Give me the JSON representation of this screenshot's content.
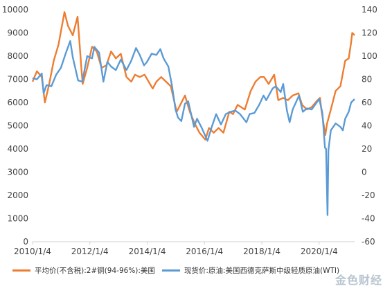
{
  "chart_data": {
    "type": "line",
    "x_start": "2010/1/4",
    "x_end": "2021/3/31",
    "xticks": [
      "2010/1/4",
      "2012/1/4",
      "2014/1/4",
      "2016/1/4",
      "2018/1/4",
      "2020/1/4"
    ],
    "y_left": {
      "min": 0,
      "max": 10000,
      "ticks": [
        "0",
        "1000",
        "2000",
        "3000",
        "4000",
        "5000",
        "6000",
        "7000",
        "8000",
        "9000",
        "10000"
      ]
    },
    "y_right": {
      "min": -60,
      "max": 140,
      "ticks": [
        "-60",
        "-40",
        "-20",
        "0",
        "20",
        "40",
        "60",
        "80",
        "100",
        "120",
        "140"
      ]
    },
    "series": [
      {
        "name": "平均价(不含税):2#铜(94-96%):美国",
        "axis": "left",
        "color": "#ed7d31",
        "points": [
          [
            "2010/1/4",
            6900
          ],
          [
            "2010/3/1",
            7350
          ],
          [
            "2010/5/1",
            7100
          ],
          [
            "2010/6/10",
            6000
          ],
          [
            "2010/8/1",
            6750
          ],
          [
            "2010/10/1",
            7800
          ],
          [
            "2010/12/1",
            8500
          ],
          [
            "2011/2/15",
            9900
          ],
          [
            "2011/4/1",
            9300
          ],
          [
            "2011/6/1",
            8900
          ],
          [
            "2011/8/1",
            9700
          ],
          [
            "2011/9/20",
            7400
          ],
          [
            "2011/10/5",
            6800
          ],
          [
            "2011/12/1",
            7500
          ],
          [
            "2012/2/1",
            8400
          ],
          [
            "2012/4/1",
            8200
          ],
          [
            "2012/6/1",
            7500
          ],
          [
            "2012/8/1",
            7600
          ],
          [
            "2012/10/1",
            8200
          ],
          [
            "2012/12/1",
            7900
          ],
          [
            "2013/2/1",
            8100
          ],
          [
            "2013/4/15",
            7100
          ],
          [
            "2013/6/15",
            6900
          ],
          [
            "2013/8/1",
            7200
          ],
          [
            "2013/10/1",
            7100
          ],
          [
            "2013/12/1",
            7200
          ],
          [
            "2014/3/15",
            6600
          ],
          [
            "2014/5/1",
            6900
          ],
          [
            "2014/7/1",
            7100
          ],
          [
            "2014/9/1",
            6900
          ],
          [
            "2014/11/1",
            6700
          ],
          [
            "2015/1/15",
            5600
          ],
          [
            "2015/3/1",
            5900
          ],
          [
            "2015/5/1",
            6300
          ],
          [
            "2015/7/1",
            5600
          ],
          [
            "2015/9/1",
            5100
          ],
          [
            "2015/11/1",
            4700
          ],
          [
            "2016/1/15",
            4400
          ],
          [
            "2016/3/1",
            4900
          ],
          [
            "2016/5/1",
            4700
          ],
          [
            "2016/7/1",
            4900
          ],
          [
            "2016/9/1",
            4700
          ],
          [
            "2016/11/15",
            5600
          ],
          [
            "2017/1/1",
            5500
          ],
          [
            "2017/3/1",
            5900
          ],
          [
            "2017/6/1",
            5700
          ],
          [
            "2017/8/15",
            6500
          ],
          [
            "2017/10/15",
            6900
          ],
          [
            "2017/12/15",
            7100
          ],
          [
            "2018/2/1",
            7100
          ],
          [
            "2018/4/1",
            6800
          ],
          [
            "2018/6/10",
            7200
          ],
          [
            "2018/8/1",
            6100
          ],
          [
            "2018/10/1",
            6200
          ],
          [
            "2018/12/1",
            6100
          ],
          [
            "2019/2/1",
            6300
          ],
          [
            "2019/4/15",
            6400
          ],
          [
            "2019/6/1",
            5900
          ],
          [
            "2019/8/1",
            5700
          ],
          [
            "2019/10/1",
            5800
          ],
          [
            "2019/12/15",
            6100
          ],
          [
            "2020/1/15",
            6200
          ],
          [
            "2020/2/1",
            5700
          ],
          [
            "2020/3/23",
            4600
          ],
          [
            "2020/4/15",
            5100
          ],
          [
            "2020/6/1",
            5700
          ],
          [
            "2020/8/1",
            6500
          ],
          [
            "2020/10/1",
            6700
          ],
          [
            "2020/12/1",
            7800
          ],
          [
            "2021/1/15",
            7900
          ],
          [
            "2021/2/15",
            8600
          ],
          [
            "2021/3/1",
            9000
          ],
          [
            "2021/3/31",
            8900
          ]
        ]
      },
      {
        "name": "现货价:原油:美国西德克萨斯中级轻质原油(WTI)",
        "axis": "right",
        "color": "#5b9bd5",
        "points": [
          [
            "2010/1/4",
            81
          ],
          [
            "2010/3/1",
            80
          ],
          [
            "2010/5/1",
            85
          ],
          [
            "2010/5/25",
            68
          ],
          [
            "2010/7/1",
            75
          ],
          [
            "2010/9/1",
            74
          ],
          [
            "2010/11/1",
            84
          ],
          [
            "2011/1/1",
            90
          ],
          [
            "2011/3/1",
            102
          ],
          [
            "2011/4/29",
            113
          ],
          [
            "2011/6/1",
            99
          ],
          [
            "2011/8/8",
            79
          ],
          [
            "2011/10/1",
            78
          ],
          [
            "2011/12/1",
            100
          ],
          [
            "2012/2/1",
            98
          ],
          [
            "2012/3/1",
            108
          ],
          [
            "2012/5/1",
            103
          ],
          [
            "2012/6/25",
            78
          ],
          [
            "2012/8/15",
            95
          ],
          [
            "2012/10/1",
            91
          ],
          [
            "2012/12/1",
            88
          ],
          [
            "2013/2/1",
            97
          ],
          [
            "2013/4/15",
            88
          ],
          [
            "2013/6/15",
            96
          ],
          [
            "2013/8/15",
            107
          ],
          [
            "2013/10/1",
            101
          ],
          [
            "2013/11/25",
            92
          ],
          [
            "2014/1/1",
            95
          ],
          [
            "2014/3/1",
            102
          ],
          [
            "2014/5/1",
            101
          ],
          [
            "2014/6/20",
            106
          ],
          [
            "2014/8/1",
            98
          ],
          [
            "2014/10/1",
            91
          ],
          [
            "2014/11/15",
            75
          ],
          [
            "2014/12/31",
            54
          ],
          [
            "2015/2/1",
            47
          ],
          [
            "2015/3/15",
            44
          ],
          [
            "2015/5/1",
            59
          ],
          [
            "2015/6/10",
            61
          ],
          [
            "2015/8/24",
            39
          ],
          [
            "2015/10/1",
            46
          ],
          [
            "2015/12/1",
            38
          ],
          [
            "2016/2/11",
            27
          ],
          [
            "2016/4/1",
            38
          ],
          [
            "2016/6/1",
            50
          ],
          [
            "2016/8/1",
            41
          ],
          [
            "2016/10/1",
            50
          ],
          [
            "2016/12/1",
            52
          ],
          [
            "2017/2/1",
            53
          ],
          [
            "2017/4/1",
            50
          ],
          [
            "2017/6/21",
            43
          ],
          [
            "2017/8/1",
            50
          ],
          [
            "2017/10/1",
            51
          ],
          [
            "2017/12/1",
            58
          ],
          [
            "2018/1/25",
            66
          ],
          [
            "2018/3/1",
            62
          ],
          [
            "2018/5/20",
            72
          ],
          [
            "2018/7/1",
            74
          ],
          [
            "2018/9/1",
            69
          ],
          [
            "2018/10/3",
            76
          ],
          [
            "2018/11/20",
            53
          ],
          [
            "2018/12/24",
            43
          ],
          [
            "2019/2/1",
            54
          ],
          [
            "2019/4/23",
            66
          ],
          [
            "2019/6/10",
            52
          ],
          [
            "2019/8/1",
            55
          ],
          [
            "2019/10/1",
            54
          ],
          [
            "2019/12/15",
            61
          ],
          [
            "2020/1/6",
            63
          ],
          [
            "2020/2/15",
            51
          ],
          [
            "2020/3/18",
            21
          ],
          [
            "2020/4/1",
            20
          ],
          [
            "2020/4/20",
            -37
          ],
          [
            "2020/5/1",
            19
          ],
          [
            "2020/6/1",
            36
          ],
          [
            "2020/8/1",
            42
          ],
          [
            "2020/10/1",
            39
          ],
          [
            "2020/11/1",
            36
          ],
          [
            "2020/12/1",
            46
          ],
          [
            "2021/1/15",
            52
          ],
          [
            "2021/2/15",
            60
          ],
          [
            "2021/3/31",
            63
          ]
        ]
      }
    ],
    "legend_position": "bottom",
    "grid": false
  },
  "watermark": {
    "text": "金色财经"
  }
}
